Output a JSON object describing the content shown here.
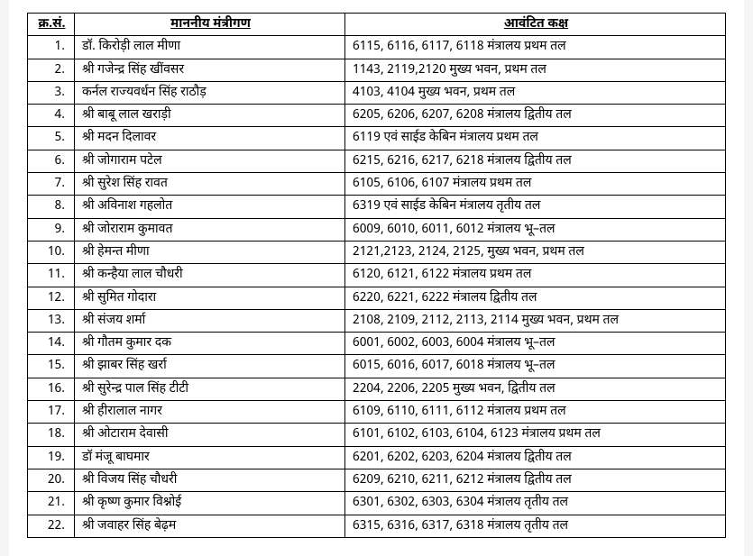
{
  "table": {
    "headers": {
      "sn": "क्र.सं.",
      "name": "माननीय मंत्रीगण",
      "room": "आवंटित कक्ष"
    },
    "rows": [
      {
        "sn": "1.",
        "name": "डॉ. किरोड़ी लाल मीणा",
        "room": "6115, 6116, 6117, 6118 मंत्रालय प्रथम तल"
      },
      {
        "sn": "2.",
        "name": "श्री गजेन्द्र सिंह खींवसर",
        "room": "1143, 2119,2120 मुख्य भवन, प्रथम तल"
      },
      {
        "sn": "3.",
        "name": "कर्नल राज्यवर्धन सिंह राठौड़",
        "room": "4103, 4104 मुख्य भवन, प्रथम तल"
      },
      {
        "sn": "4.",
        "name": "श्री बाबू लाल खराड़ी",
        "room": "6205, 6206, 6207, 6208 मंत्रालय द्वितीय तल"
      },
      {
        "sn": "5.",
        "name": "श्री मदन दिलावर",
        "room": "6119 एवं साईड केबिन मंत्रालय प्रथम तल"
      },
      {
        "sn": "6.",
        "name": "श्री जोगाराम पटेल",
        "room": "6215, 6216, 6217, 6218 मंत्रालय द्वितीय तल"
      },
      {
        "sn": "7.",
        "name": "श्री सुरेश सिंह रावत",
        "room": "6105, 6106, 6107  मंत्रालय प्रथम तल"
      },
      {
        "sn": "8.",
        "name": "श्री अविनाश गहलोत",
        "room": "6319 एवं साईड केबिन मंत्रालय तृतीय तल"
      },
      {
        "sn": "9.",
        "name": "श्री जोराराम कुमावत",
        "room": "6009, 6010, 6011, 6012 मंत्रालय भू–तल"
      },
      {
        "sn": "10.",
        "name": "श्री हेमन्त मीणा",
        "room": "2121,2123, 2124, 2125, मुख्य भवन, प्रथम तल"
      },
      {
        "sn": "11.",
        "name": "श्री कन्हैया लाल चौधरी",
        "room": "6120, 6121, 6122  मंत्रालय प्रथम तल"
      },
      {
        "sn": "12.",
        "name": "श्री सुमित गोदारा",
        "room": "6220, 6221, 6222 मंत्रालय द्वितीय तल"
      },
      {
        "sn": "13.",
        "name": "श्री संजय शर्मा",
        "room": "2108, 2109, 2112, 2113, 2114 मुख्य भवन, प्रथम तल"
      },
      {
        "sn": "14.",
        "name": "श्री गौतम कुमार दक",
        "room": "6001, 6002, 6003, 6004 मंत्रालय भू–तल"
      },
      {
        "sn": "15.",
        "name": "श्री झाबर सिंह खर्रा",
        "room": "6015, 6016, 6017, 6018 मंत्रालय भू–तल"
      },
      {
        "sn": "16.",
        "name": "श्री सुरेन्द्र पाल सिंह टीटी",
        "room": "2204, 2206, 2205 मुख्य भवन, द्वितीय तल"
      },
      {
        "sn": "17.",
        "name": "श्री हीरालाल नागर",
        "room": "6109, 6110, 6111, 6112 मंत्रालय प्रथम तल"
      },
      {
        "sn": "18.",
        "name": "श्री ओटाराम देवासी",
        "room": "6101, 6102, 6103, 6104, 6123 मंत्रालय प्रथम तल"
      },
      {
        "sn": "19.",
        "name": "डॉ मंजू बाघमार",
        "room": "6201, 6202, 6203, 6204 मंत्रालय द्वितीय तल"
      },
      {
        "sn": "20.",
        "name": "श्री विजय सिंह चौधरी",
        "room": "6209, 6210, 6211, 6212 मंत्रालय द्वितीय तल"
      },
      {
        "sn": "21.",
        "name": "श्री कृष्ण कुमार विश्नोई",
        "room": "6301, 6302, 6303, 6304 मंत्रालय तृतीय तल"
      },
      {
        "sn": "22.",
        "name": "श्री जवाहर सिंह बेढ़म",
        "room": "6315, 6316, 6317, 6318 मंत्रालय तृतीय तल"
      }
    ],
    "border_color": "#000000",
    "background_color": "#ffffff",
    "font_size_pt": 10.5
  }
}
